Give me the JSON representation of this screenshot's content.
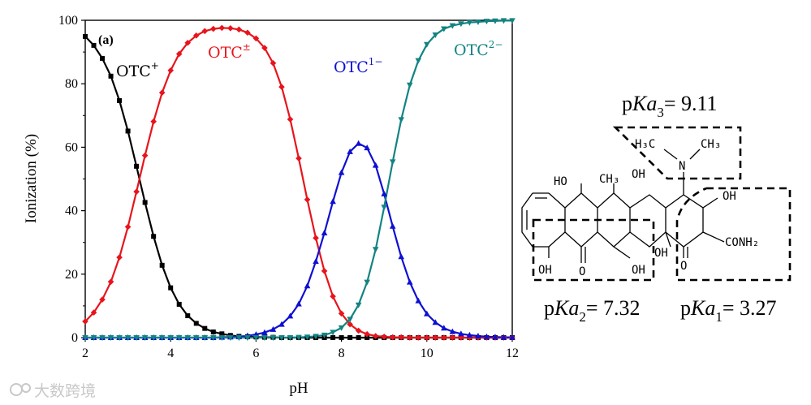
{
  "chart_data": {
    "type": "line",
    "panel_label": "(a)",
    "xlabel": "pH",
    "ylabel": "Ionization (%)",
    "xlim": [
      2,
      12
    ],
    "ylim": [
      0,
      100
    ],
    "xticks": [
      2,
      4,
      6,
      8,
      10,
      12
    ],
    "yticks": [
      0,
      20,
      40,
      60,
      80,
      100
    ],
    "pka_values": {
      "pKa1": 3.27,
      "pKa2": 7.32,
      "pKa3": 9.11
    },
    "x": [
      2.0,
      2.2,
      2.4,
      2.6,
      2.8,
      3.0,
      3.2,
      3.4,
      3.6,
      3.8,
      4.0,
      4.2,
      4.4,
      4.6,
      4.8,
      5.0,
      5.2,
      5.4,
      5.6,
      5.8,
      6.0,
      6.2,
      6.4,
      6.6,
      6.8,
      7.0,
      7.2,
      7.4,
      7.6,
      7.8,
      8.0,
      8.2,
      8.4,
      8.6,
      8.8,
      9.0,
      9.2,
      9.4,
      9.6,
      9.8,
      10.0,
      10.2,
      10.4,
      10.6,
      10.8,
      11.0,
      11.2,
      11.4,
      11.6,
      11.8,
      12.0
    ],
    "series": [
      {
        "name": "OTC+",
        "label_main": "OTC",
        "label_sup": "+",
        "color": "#000000",
        "marker": "square",
        "values": [
          94.9,
          92.1,
          88.0,
          82.4,
          74.7,
          65.1,
          54.0,
          42.6,
          31.9,
          22.8,
          15.7,
          10.5,
          6.9,
          4.5,
          2.9,
          1.8,
          1.2,
          0.7,
          0.4,
          0.3,
          0.2,
          0.1,
          0.1,
          0.0,
          0.0,
          0.0,
          0.0,
          0.0,
          0.0,
          0.0,
          0.0,
          0.0,
          0.0,
          0.0,
          0.0,
          0.0,
          0.0,
          0.0,
          0.0,
          0.0,
          0.0,
          0.0,
          0.0,
          0.0,
          0.0,
          0.0,
          0.0,
          0.0,
          0.0,
          0.0,
          0.0
        ]
      },
      {
        "name": "OTC±",
        "label_main": "OTC",
        "label_sup": "±",
        "color": "#e8141c",
        "marker": "diamond",
        "values": [
          5.1,
          7.9,
          12.0,
          17.6,
          25.3,
          34.9,
          46.0,
          57.4,
          68.1,
          77.2,
          84.2,
          89.4,
          92.9,
          95.2,
          96.6,
          97.3,
          97.6,
          97.5,
          97.1,
          96.1,
          94.3,
          91.3,
          86.5,
          79.0,
          68.8,
          56.5,
          43.5,
          31.4,
          21.0,
          13.0,
          7.6,
          4.2,
          2.2,
          1.1,
          0.5,
          0.3,
          0.1,
          0.1,
          0.0,
          0.0,
          0.0,
          0.0,
          0.0,
          0.0,
          0.0,
          0.0,
          0.0,
          0.0,
          0.0,
          0.0,
          0.0
        ]
      },
      {
        "name": "OTC1−",
        "label_main": "OTC",
        "label_sup": "1−",
        "color": "#0f0fd2",
        "marker": "triangle-up",
        "values": [
          0.0,
          0.0,
          0.0,
          0.0,
          0.0,
          0.0,
          0.0,
          0.0,
          0.0,
          0.0,
          0.0,
          0.0,
          0.0,
          0.0,
          0.0,
          0.0,
          0.1,
          0.2,
          0.3,
          0.6,
          1.0,
          1.6,
          2.6,
          4.2,
          6.8,
          10.6,
          16.3,
          24.0,
          33.0,
          42.9,
          52.0,
          58.6,
          61.2,
          59.8,
          54.3,
          45.3,
          35.1,
          25.5,
          17.5,
          11.6,
          7.5,
          4.8,
          3.0,
          1.9,
          1.2,
          0.8,
          0.5,
          0.3,
          0.2,
          0.1,
          0.1
        ]
      },
      {
        "name": "OTC2−",
        "label_main": "OTC",
        "label_sup": "2−",
        "color": "#128382",
        "marker": "triangle-down",
        "values": [
          0.0,
          0.0,
          0.0,
          0.0,
          0.0,
          0.0,
          0.0,
          0.0,
          0.0,
          0.0,
          0.0,
          0.0,
          0.0,
          0.0,
          0.0,
          0.0,
          0.0,
          0.0,
          0.0,
          0.0,
          0.0,
          0.0,
          0.0,
          0.0,
          0.0,
          0.1,
          0.2,
          0.4,
          0.8,
          1.7,
          3.1,
          5.8,
          10.3,
          17.5,
          27.8,
          41.1,
          55.4,
          68.7,
          79.6,
          87.3,
          92.4,
          95.4,
          97.3,
          98.3,
          98.9,
          99.3,
          99.5,
          99.7,
          99.8,
          99.9,
          99.9
        ]
      }
    ]
  },
  "structure": {
    "pka_labels": [
      {
        "id": "pKa3",
        "prefix": "p",
        "italic": "Ka",
        "sub": "3",
        "value": "= 9.11"
      },
      {
        "id": "pKa2",
        "prefix": "p",
        "italic": "Ka",
        "sub": "2",
        "value": "= 7.32"
      },
      {
        "id": "pKa1",
        "prefix": "p",
        "italic": "Ka",
        "sub": "1",
        "value": "= 3.27"
      }
    ],
    "groups": {
      "dimethylamino_methyl_left": "H₃C",
      "dimethylamino_methyl_right": "CH₃",
      "amine_n": "N",
      "ho_c6": "HO",
      "methyl_c6": "CH₃",
      "oh_c5": "OH",
      "oh_c3": "OH",
      "amide": "CONH₂",
      "oh_c10": "OH",
      "o_c11": "O",
      "oh_c12": "OH",
      "oh_c12a": "OH",
      "o_c1": "O"
    }
  },
  "watermark": "大数跨境"
}
